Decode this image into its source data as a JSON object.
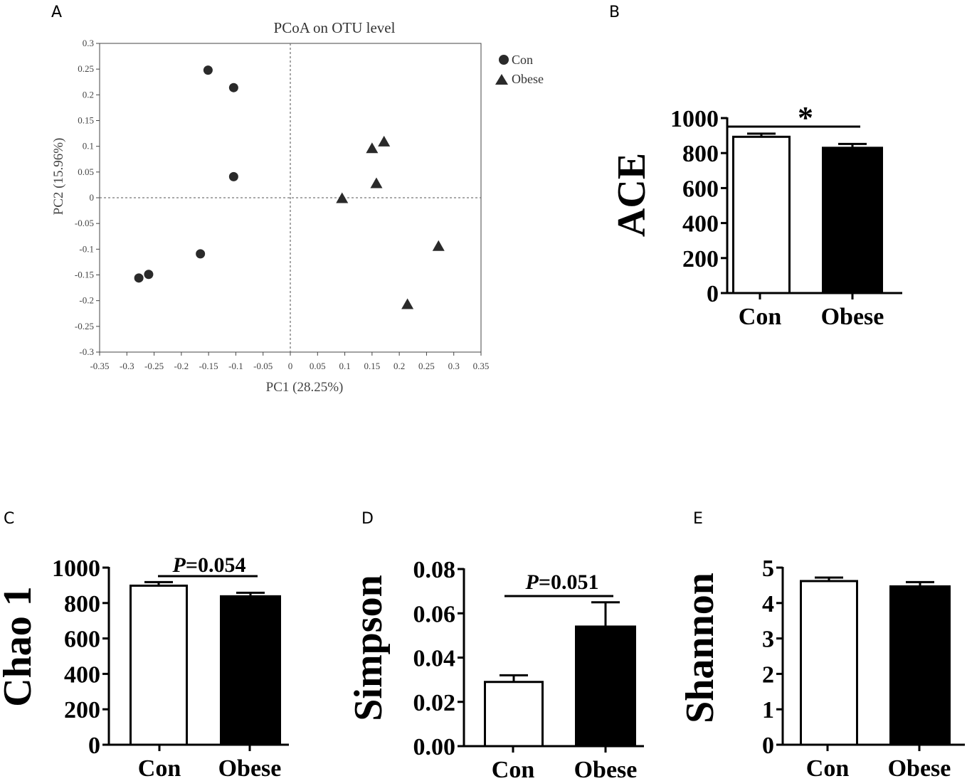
{
  "chart_data": [
    {
      "panel": "A",
      "type": "scatter",
      "title": "PCoA on OTU level",
      "xlabel": "PC1 (28.25%)",
      "ylabel": "PC2 (15.96%)",
      "xlim": [
        -0.35,
        0.35
      ],
      "ylim": [
        -0.3,
        0.3
      ],
      "xticks": [
        "-0.35",
        "-0.3",
        "-0.25",
        "-0.2",
        "-0.15",
        "-0.1",
        "-0.05",
        "0",
        "0.05",
        "0.1",
        "0.15",
        "0.2",
        "0.25",
        "0.3",
        "0.35"
      ],
      "yticks": [
        "0.3",
        "0.25",
        "0.2",
        "0.15",
        "0.1",
        "0.05",
        "0",
        "-0.05",
        "-0.1",
        "-0.15",
        "-0.2",
        "-0.25",
        "-0.3"
      ],
      "legend": "top-right",
      "series": [
        {
          "name": "Con",
          "marker": "circle",
          "points": [
            {
              "x": -0.151,
              "y": 0.248
            },
            {
              "x": -0.104,
              "y": 0.214
            },
            {
              "x": -0.104,
              "y": 0.041
            },
            {
              "x": -0.165,
              "y": -0.109
            },
            {
              "x": -0.278,
              "y": -0.156
            },
            {
              "x": -0.26,
              "y": -0.149
            }
          ]
        },
        {
          "name": "Obese",
          "marker": "triangle",
          "points": [
            {
              "x": 0.15,
              "y": 0.095
            },
            {
              "x": 0.172,
              "y": 0.108
            },
            {
              "x": 0.158,
              "y": 0.027
            },
            {
              "x": 0.095,
              "y": -0.002
            },
            {
              "x": 0.272,
              "y": -0.095
            },
            {
              "x": 0.215,
              "y": -0.208
            }
          ]
        }
      ]
    },
    {
      "panel": "B",
      "type": "bar",
      "ylabel": "ACE",
      "categories": [
        "Con",
        "Obese"
      ],
      "values": [
        893,
        830
      ],
      "errors": [
        18,
        22
      ],
      "ylim": [
        0,
        1000
      ],
      "yticks": [
        "1000",
        "800",
        "600",
        "400",
        "200",
        "0"
      ],
      "significance": "*"
    },
    {
      "panel": "C",
      "type": "bar",
      "ylabel": "Chao 1",
      "categories": [
        "Con",
        "Obese"
      ],
      "values": [
        898,
        838
      ],
      "errors": [
        20,
        20
      ],
      "ylim": [
        0,
        1000
      ],
      "yticks": [
        "1000",
        "800",
        "600",
        "400",
        "200",
        "0"
      ],
      "significance": "P=0.054",
      "sig_prefix": "P",
      "sig_value": "=0.054"
    },
    {
      "panel": "D",
      "type": "bar",
      "ylabel": "Simpson",
      "categories": [
        "Con",
        "Obese"
      ],
      "values": [
        0.029,
        0.054
      ],
      "errors": [
        0.003,
        0.011
      ],
      "ylim": [
        0,
        0.08
      ],
      "yticks": [
        "0.08",
        "0.06",
        "0.04",
        "0.02",
        "0.00"
      ],
      "significance": "P=0.051",
      "sig_prefix": "P",
      "sig_value": "=0.051"
    },
    {
      "panel": "E",
      "type": "bar",
      "ylabel": "Shannon",
      "categories": [
        "Con",
        "Obese"
      ],
      "values": [
        4.62,
        4.47
      ],
      "errors": [
        0.1,
        0.12
      ],
      "ylim": [
        0,
        5
      ],
      "yticks": [
        "5",
        "4",
        "3",
        "2",
        "1",
        "0"
      ]
    }
  ]
}
